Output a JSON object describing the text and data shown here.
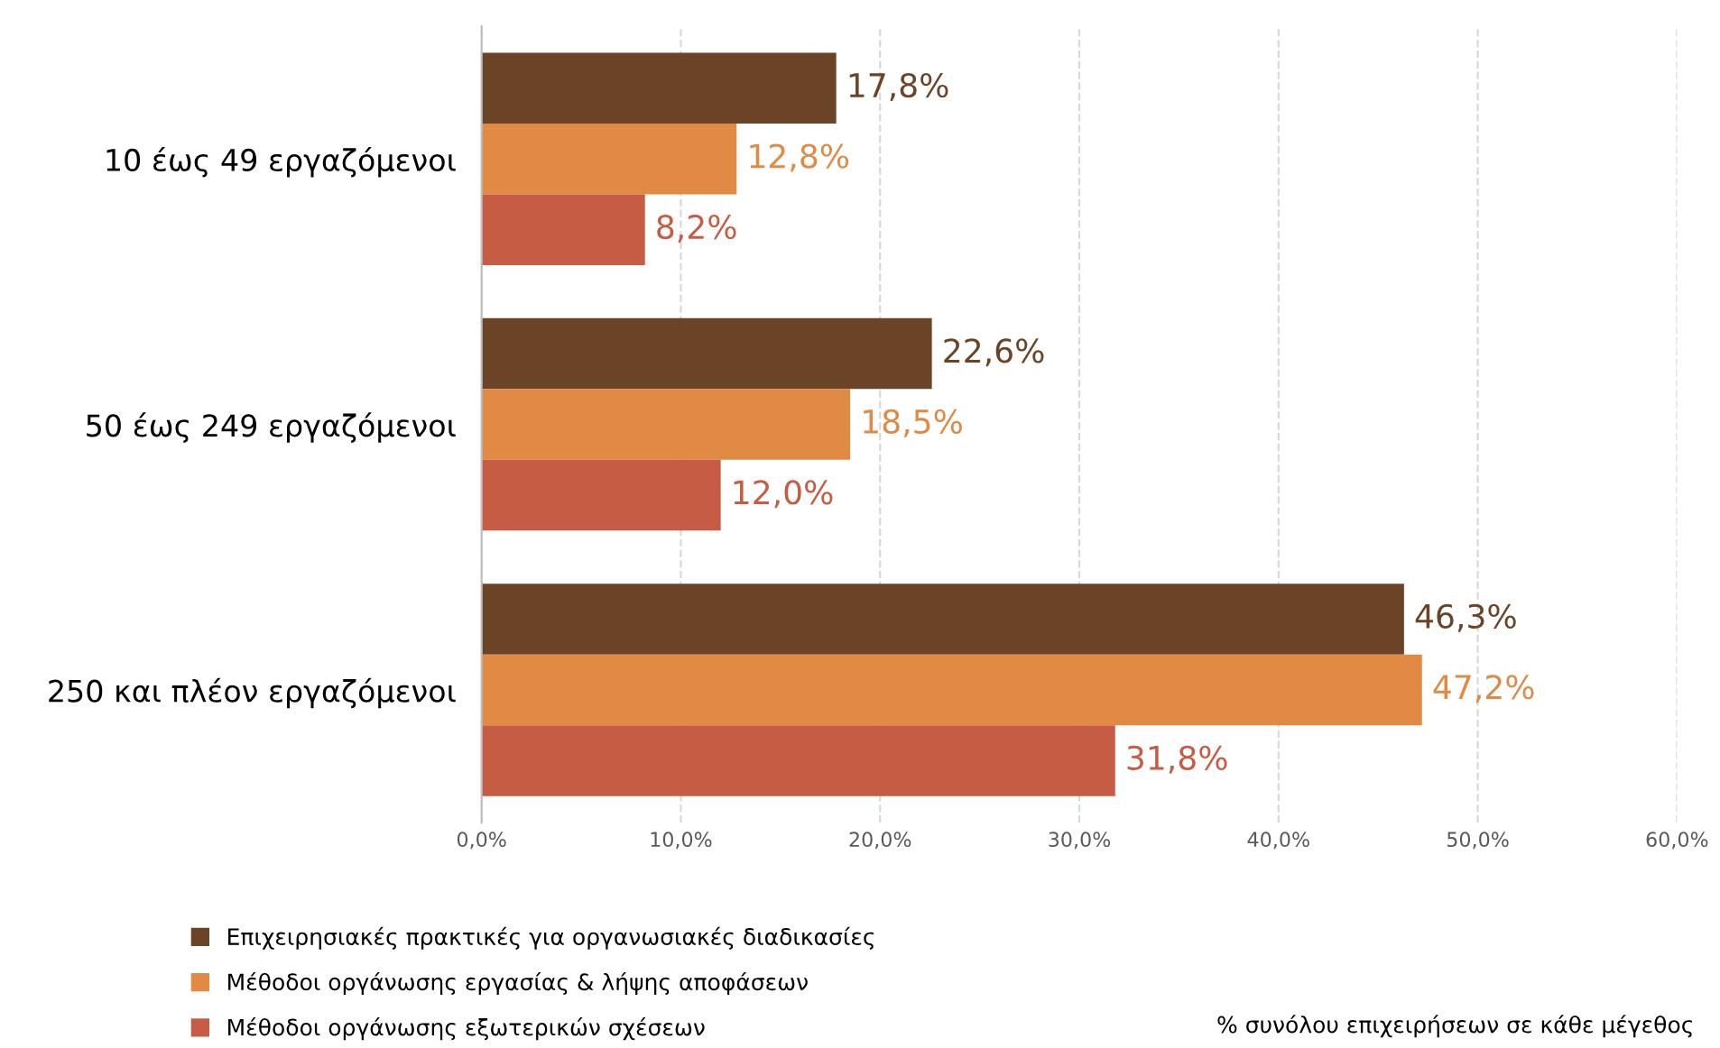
{
  "chart_data": {
    "type": "bar",
    "orientation": "horizontal",
    "categories": [
      "10 έως 49 εργαζόμενοι",
      "50 έως 249 εργαζόμενοι",
      "250 και πλέον εργαζόμενοι"
    ],
    "series": [
      {
        "name": "Επιχειρησιακές πρακτικές για οργανωσιακές διαδικασίες",
        "color": "#6b4427",
        "values": [
          17.8,
          22.6,
          46.3
        ],
        "value_labels": [
          "17,8%",
          "22,6%",
          "46,3%"
        ]
      },
      {
        "name": "Μέθοδοι οργάνωσης εργασίας & λήψης αποφάσεων",
        "color": "#e08a44",
        "values": [
          12.8,
          18.5,
          47.2
        ],
        "value_labels": [
          "12,8%",
          "18,5%",
          "47,2%"
        ]
      },
      {
        "name": "Μέθοδοι οργάνωσης εξωτερικών σχέσεων",
        "color": "#c65c44",
        "values": [
          8.2,
          12.0,
          31.8
        ],
        "value_labels": [
          "8,2%",
          "12,0%",
          "31,8%"
        ]
      }
    ],
    "xlim": [
      0,
      60
    ],
    "xticks": [
      {
        "value": 0,
        "label": "0,0%"
      },
      {
        "value": 10,
        "label": "10,0%"
      },
      {
        "value": 20,
        "label": "20,0%"
      },
      {
        "value": 30,
        "label": "30,0%"
      },
      {
        "value": 40,
        "label": "40,0%"
      },
      {
        "value": 50,
        "label": "50,0%"
      },
      {
        "value": 60,
        "label": "60,0%"
      }
    ],
    "grid": "x",
    "legend": "bottom left",
    "annotations": [
      "% συνόλου επιχειρήσεων σε κάθε μέγεθος"
    ]
  }
}
